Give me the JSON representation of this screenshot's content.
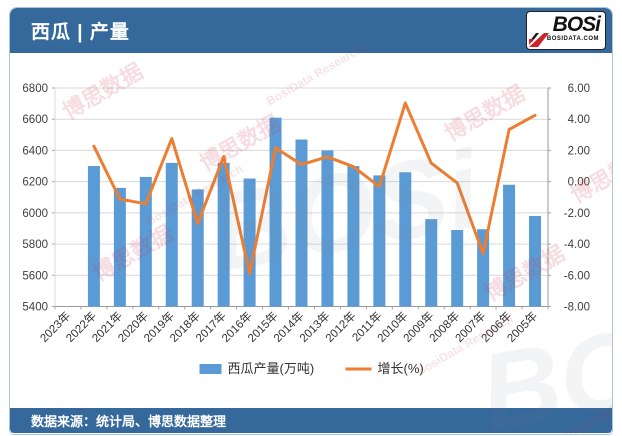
{
  "header": {
    "title": "西瓜 | 产量",
    "logo_text": "BOSi",
    "logo_sub": "BOSIDATA.COM"
  },
  "footer": {
    "source": "数据来源：统计局、博思数据整理"
  },
  "watermark": {
    "cn": "博思数据",
    "en": "BosiData Research",
    "logo": "BOSi"
  },
  "chart_data": {
    "type": "bar",
    "subtype": "bar-line-combo",
    "categories": [
      "2023年",
      "2022年",
      "2021年",
      "2020年",
      "2019年",
      "2018年",
      "2017年",
      "2016年",
      "2015年",
      "2014年",
      "2013年",
      "2012年",
      "2011年",
      "2010年",
      "2009年",
      "2008年",
      "2007年",
      "2006年",
      "2005年"
    ],
    "series": [
      {
        "name": "西瓜产量(万吨)",
        "type": "bar",
        "axis": "left",
        "color": "#5b9bd5",
        "values": [
          null,
          6300,
          6160,
          6230,
          6320,
          6150,
          6320,
          6220,
          6610,
          6470,
          6400,
          6300,
          6240,
          6260,
          5960,
          5890,
          5895,
          6180,
          5980
        ]
      },
      {
        "name": "增长(%)",
        "type": "line",
        "axis": "right",
        "color": "#ed7d31",
        "values": [
          null,
          2.27,
          -1.12,
          -1.42,
          2.76,
          -2.69,
          1.61,
          -5.9,
          2.16,
          1.09,
          1.59,
          0.96,
          -0.32,
          5.03,
          1.19,
          -0.08,
          -4.61,
          3.34,
          4.25
        ]
      }
    ],
    "left_axis": {
      "min": 5400,
      "max": 6800,
      "step": 200
    },
    "right_axis": {
      "min": -8,
      "max": 6,
      "step": 2,
      "decimals": 2
    },
    "grid": true,
    "legend_position": "bottom",
    "x_label_rotation": -45,
    "colors": {
      "gridline": "#d9d9d9",
      "axis_line": "#9a9a9a",
      "tick": "#a6a6a6",
      "axis_text": "#3f3f3f"
    }
  }
}
